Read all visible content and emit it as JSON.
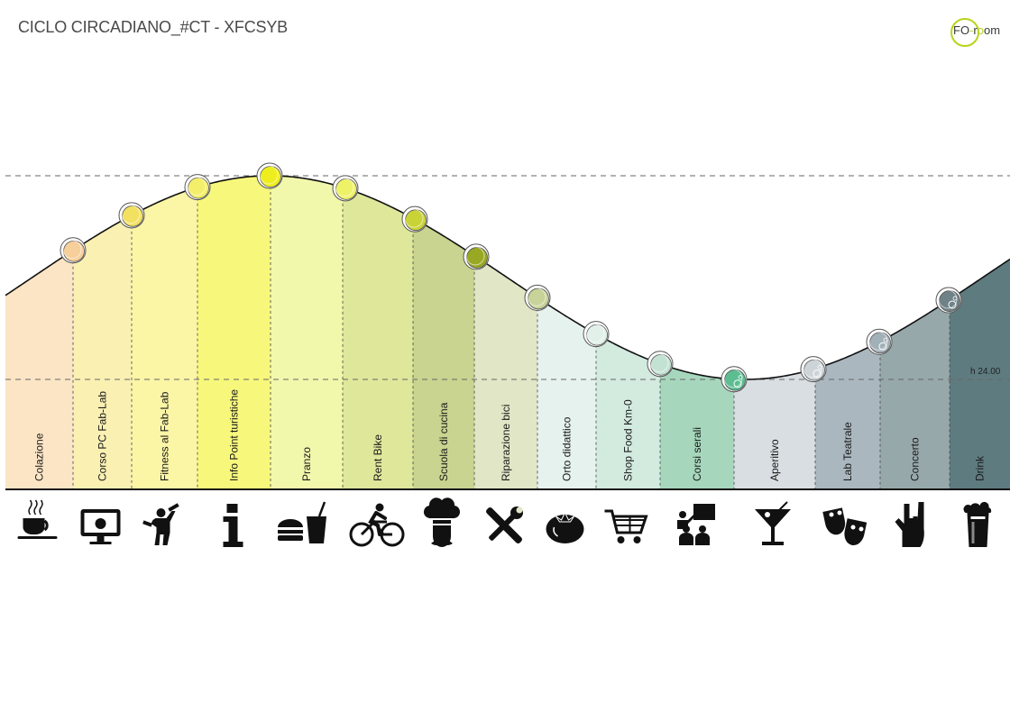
{
  "header": {
    "title": "CICLO CIRCADIANO_#CT - XFCSYB",
    "logo_text": "FO-room"
  },
  "reference_label": "h 24.00",
  "activities": [
    {
      "label": "Colazione",
      "color": "#fbe5c5",
      "dot": "#f7cf9a",
      "icon": "coffee-cup-icon"
    },
    {
      "label": "Corso PC Fab-Lab",
      "color": "#faf0b2",
      "dot": "#f2e060",
      "icon": "computer-monitor-icon"
    },
    {
      "label": "Fitness al Fab-Lab",
      "color": "#fbf5a6",
      "dot": "#f4ef6b",
      "icon": "fitness-dumbbell-icon"
    },
    {
      "label": "Info Point turistiche",
      "color": "#f7f77c",
      "dot": "#eeee1e",
      "icon": "info-icon"
    },
    {
      "label": "Pranzo",
      "color": "#f1f8ab",
      "dot": "#eef267",
      "icon": "burger-drink-icon"
    },
    {
      "label": "Rent Bike",
      "color": "#dfe79b",
      "dot": "#c9d336",
      "icon": "bicycle-icon"
    },
    {
      "label": "Scuola di cucina",
      "color": "#c8d48f",
      "dot": "#98a823",
      "icon": "chef-icon"
    },
    {
      "label": "Riparazione bici",
      "color": "#e1e6c6",
      "dot": "#c8d39a",
      "icon": "wrench-screwdriver-icon"
    },
    {
      "label": "Orto didattico",
      "color": "#e6f2ee",
      "dot": "#e2f0ea",
      "icon": "tomato-icon"
    },
    {
      "label": "Shop Food Km-0",
      "color": "#d3eadf",
      "dot": "#c3e2d3",
      "icon": "shopping-cart-icon"
    },
    {
      "label": "Corsi serali",
      "color": "#a6d7bd",
      "dot": "#5cbd91",
      "icon": "teacher-class-icon"
    },
    {
      "label": "Aperitivo",
      "color": "#d8dee2",
      "dot": "#cdd4d8",
      "icon": "cocktail-icon"
    },
    {
      "label": "Lab Teatrale",
      "color": "#aab7bf",
      "dot": "#a2b0b8",
      "icon": "theater-masks-icon"
    },
    {
      "label": "Concerto",
      "color": "#97a8ab",
      "dot": "#6f8287",
      "icon": "rock-hand-icon"
    },
    {
      "label": "Drink",
      "color": "#5e7b80",
      "dot": "#3f5c64",
      "icon": "beer-glass-icon"
    }
  ]
}
